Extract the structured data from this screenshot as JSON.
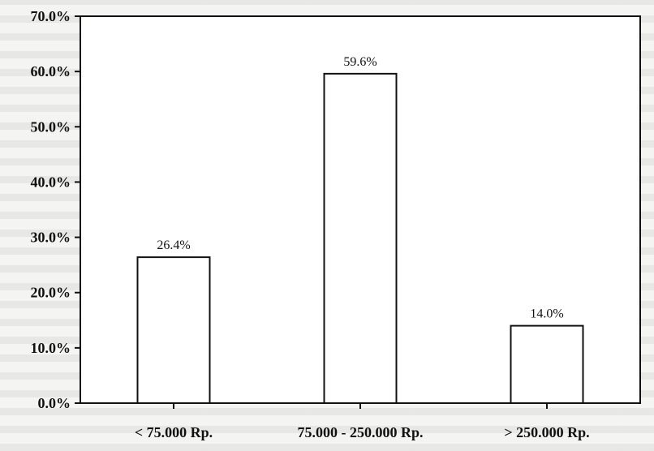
{
  "chart_data": {
    "type": "bar",
    "categories": [
      "< 75.000 Rp.",
      "75.000 - 250.000 Rp.",
      "> 250.000 Rp."
    ],
    "values": [
      26.4,
      59.6,
      14.0
    ],
    "data_labels": [
      "26.4%",
      "59.6%",
      "14.0%"
    ],
    "ylim": [
      0,
      70
    ],
    "yticks": [
      0,
      10,
      20,
      30,
      40,
      50,
      60,
      70
    ],
    "ytick_labels": [
      "0.0%",
      "10.0%",
      "20.0%",
      "30.0%",
      "40.0%",
      "50.0%",
      "60.0%",
      "70.0%"
    ],
    "grid": false,
    "title": "",
    "xlabel": "",
    "ylabel": "",
    "bar_fill": "#ffffff",
    "bar_stroke": "#111111"
  }
}
